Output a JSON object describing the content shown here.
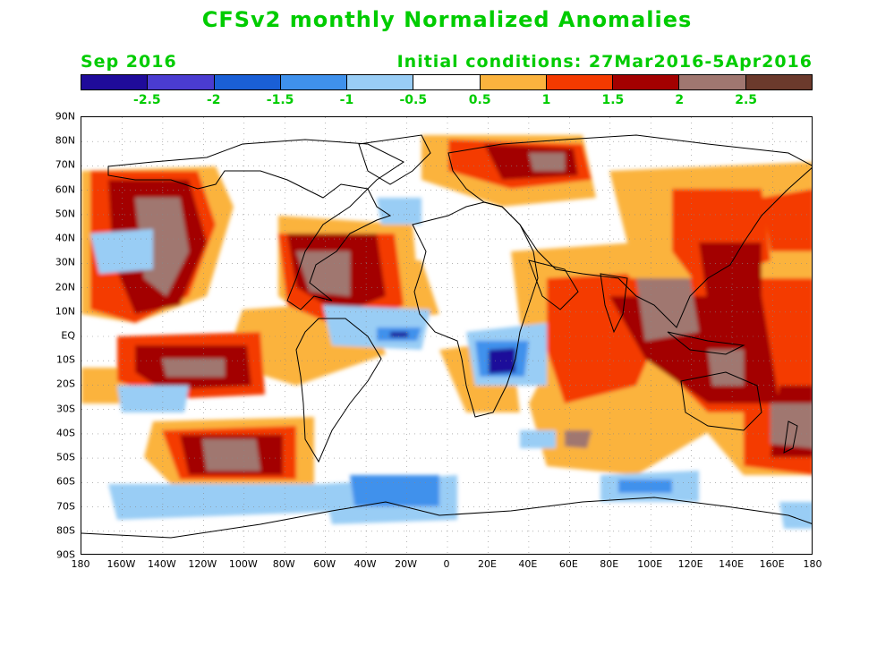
{
  "title": "CFSv2 monthly Normalized Anomalies",
  "subtitle_left": "Sep 2016",
  "subtitle_right": "Initial conditions: 27Mar2016-5Apr2016",
  "text_color": "#00cc00",
  "colorbar": {
    "colors": [
      "#1f0b9a",
      "#4a3cd0",
      "#1a5fd6",
      "#3f91ec",
      "#99cdf5",
      "#ffffff",
      "#fbb33e",
      "#f43a00",
      "#a30000",
      "#a07770",
      "#6b3a2c"
    ],
    "labels": [
      "-2.5",
      "-2",
      "-1.5",
      "-1",
      "-0.5",
      "0.5",
      "1",
      "1.5",
      "2",
      "2.5"
    ]
  },
  "lat_labels": [
    "90N",
    "80N",
    "70N",
    "60N",
    "50N",
    "40N",
    "30N",
    "20N",
    "10N",
    "EQ",
    "10S",
    "20S",
    "30S",
    "40S",
    "50S",
    "60S",
    "70S",
    "80S",
    "90S"
  ],
  "lon_labels": [
    "180",
    "160W",
    "140W",
    "120W",
    "100W",
    "80W",
    "60W",
    "40W",
    "20W",
    "0",
    "20E",
    "40E",
    "60E",
    "80E",
    "100E",
    "120E",
    "140E",
    "160E",
    "180"
  ]
}
